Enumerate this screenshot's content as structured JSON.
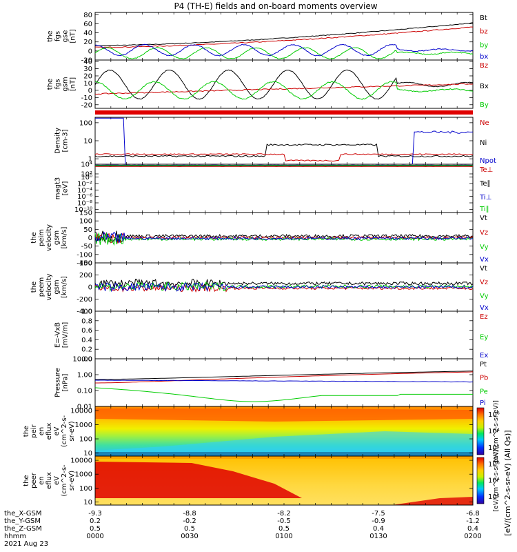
{
  "title": "P4 (TH-E) fields and on-board moments overview",
  "colors": {
    "black": "#000000",
    "red": "#cc0000",
    "green": "#00cc00",
    "blue": "#0000cc"
  },
  "chart_data": {
    "type": "line",
    "time_range_hhmm": [
      "0000",
      "0200"
    ],
    "panels": [
      {
        "id": "fgs-gse",
        "ylabel": [
          "the",
          "fgs",
          "gse",
          "[nT]"
        ],
        "scale": "linear",
        "ylim": [
          -20,
          85
        ],
        "ticks": [
          "-20",
          "0",
          "20",
          "40",
          "60",
          "80"
        ],
        "legend": [
          {
            "name": "Bt",
            "color": "#000000"
          },
          {
            "name": "bz",
            "color": "#cc0000"
          },
          {
            "name": "by",
            "color": "#00cc00"
          },
          {
            "name": "bx",
            "color": "#0000cc"
          }
        ]
      },
      {
        "id": "fgs-gsm",
        "ylabel": [
          "the",
          "fgs",
          "gsm",
          "[nT]"
        ],
        "scale": "linear",
        "ylim": [
          -25,
          42
        ],
        "ticks": [
          "-20",
          "-10",
          "0",
          "10",
          "20",
          "30",
          "40"
        ],
        "legend": [
          {
            "name": "Bz",
            "color": "#cc0000"
          },
          {
            "name": "Bx",
            "color": "#000000"
          },
          {
            "name": "By",
            "color": "#00cc00"
          }
        ]
      },
      {
        "id": "flag-bar",
        "ylabel": [],
        "scale": "none"
      },
      {
        "id": "density",
        "ylabel": [
          "Density",
          "[cm-3]"
        ],
        "scale": "log",
        "ylim": [
          0.5,
          200
        ],
        "ticks": [
          "1",
          "10",
          "100"
        ],
        "legend": [
          {
            "name": "Ne",
            "color": "#cc0000"
          },
          {
            "name": "Ni",
            "color": "#000000"
          },
          {
            "name": "Npot",
            "color": "#0000cc"
          }
        ]
      },
      {
        "id": "temperature",
        "ylabel": [
          "magt3",
          "[eV]"
        ],
        "scale": "log",
        "ylim": [
          1e-11,
          10000.0
        ],
        "ticks": [
          "10⁴",
          "10²",
          "10⁰",
          "10⁻²",
          "10⁻⁴",
          "10⁻⁶",
          "10⁻⁸",
          "10⁻¹⁰"
        ],
        "legend": [
          {
            "name": "Te⊥",
            "color": "#cc0000"
          },
          {
            "name": "Te∥",
            "color": "#000000"
          },
          {
            "name": "Ti⊥",
            "color": "#0000cc"
          },
          {
            "name": "Ti∥",
            "color": "#00cc00"
          }
        ]
      },
      {
        "id": "peim-velocity",
        "ylabel": [
          "the",
          "peim",
          "velocity",
          "gsm",
          "[km/s]"
        ],
        "scale": "linear",
        "ylim": [
          -150,
          150
        ],
        "ticks": [
          "-150",
          "-100",
          "-50",
          "0",
          "50",
          "100",
          "150"
        ],
        "legend": [
          {
            "name": "Vt",
            "color": "#000000"
          },
          {
            "name": "Vz",
            "color": "#cc0000"
          },
          {
            "name": "Vy",
            "color": "#00cc00"
          },
          {
            "name": "Vx",
            "color": "#0000cc"
          }
        ]
      },
      {
        "id": "peem-velocity",
        "ylabel": [
          "the",
          "peem",
          "velocity",
          "gsm",
          "[km/s]"
        ],
        "scale": "linear",
        "ylim": [
          -400,
          400
        ],
        "ticks": [
          "-400",
          "-200",
          "0",
          "200",
          "400"
        ],
        "legend": [
          {
            "name": "Vt",
            "color": "#000000"
          },
          {
            "name": "Vz",
            "color": "#cc0000"
          },
          {
            "name": "Vy",
            "color": "#00cc00"
          },
          {
            "name": "Vx",
            "color": "#0000cc"
          }
        ]
      },
      {
        "id": "efield",
        "ylabel": [
          "E=-VxB",
          "[mV/m]"
        ],
        "scale": "linear",
        "ylim": [
          0,
          1
        ],
        "ticks": [
          "0.0",
          "0.2",
          "0.4",
          "0.6",
          "0.8",
          "1.0"
        ],
        "legend": [
          {
            "name": "Ez",
            "color": "#cc0000"
          },
          {
            "name": "Ey",
            "color": "#00cc00"
          },
          {
            "name": "Ex",
            "color": "#0000cc"
          }
        ]
      },
      {
        "id": "pressure",
        "ylabel": [
          "Pressure",
          "[nPa]"
        ],
        "scale": "log",
        "ylim": [
          0.01,
          10
        ],
        "ticks": [
          "0.01",
          "0.10",
          "1.00",
          "10.00"
        ],
        "legend": [
          {
            "name": "Pt",
            "color": "#000000"
          },
          {
            "name": "Pb",
            "color": "#cc0000"
          },
          {
            "name": "Pe",
            "color": "#00cc00"
          },
          {
            "name": "Pi",
            "color": "#0000cc"
          }
        ]
      },
      {
        "id": "peir-spec",
        "ylabel": [
          "the",
          "peir",
          "en",
          "eflux",
          "eV",
          "(cm^2-s-",
          "sr-eV)"
        ],
        "scale": "log",
        "ylim": [
          6,
          20000
        ],
        "ticks": [
          "10",
          "100",
          "1000",
          "10000"
        ],
        "colorbar": {
          "label": "[eV/(cm^2-s-sr-eV)]",
          "ticks": [
            "10²",
            "10⁴",
            "10⁶"
          ]
        }
      },
      {
        "id": "peer-spec",
        "ylabel": [
          "the",
          "peer",
          "en",
          "eflux",
          "eV",
          "(cm^2-s-",
          "sr-eV)"
        ],
        "scale": "log",
        "ylim": [
          6,
          20000
        ],
        "ticks": [
          "10",
          "100",
          "1000",
          "10000"
        ],
        "colorbar": {
          "label": "[eV/(cm^2-s-sr-eV)]",
          "ticks": [
            "10²",
            "10⁴",
            "10⁶"
          ]
        }
      }
    ],
    "colorbar_side_label": "[eV/(cm^2-s-sr-eV) (All Qs)]",
    "xaxis": {
      "row_labels": [
        "the_X-GSM",
        "the_Y-GSM",
        "the_Z-GSM",
        "hhmm"
      ],
      "ticks": [
        {
          "x": "-9.3",
          "y": "0.2",
          "z": "0.5",
          "t": "0000"
        },
        {
          "x": "-8.8",
          "y": "-0.2",
          "z": "0.5",
          "t": "0030"
        },
        {
          "x": "-8.2",
          "y": "-0.5",
          "z": "0.5",
          "t": "0100"
        },
        {
          "x": "-7.5",
          "y": "-0.9",
          "z": "0.4",
          "t": "0130"
        },
        {
          "x": "-6.8",
          "y": "-1.2",
          "z": "0.4",
          "t": "0200"
        }
      ],
      "date": "2021 Aug 23"
    }
  }
}
